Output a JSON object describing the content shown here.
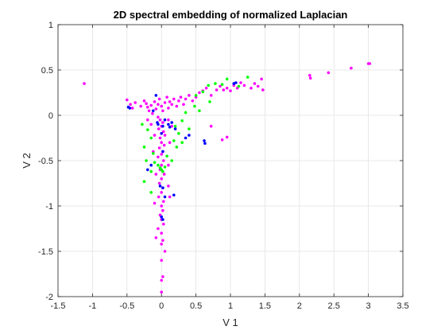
{
  "chart_data": {
    "type": "scatter",
    "title": "2D spectral embedding of normalized Laplacian",
    "xlabel": "V 1",
    "ylabel": "V 2",
    "xlim": [
      -1.5,
      3.5
    ],
    "ylim": [
      -2,
      1
    ],
    "xticks": [
      "-1.5",
      "-1",
      "-0.5",
      "0",
      "0.5",
      "1",
      "1.5",
      "2",
      "2.5",
      "3",
      "3.5"
    ],
    "yticks": [
      "-2",
      "-1.5",
      "-1",
      "-0.5",
      "0",
      "0.5",
      "1"
    ],
    "grid": true,
    "box": true,
    "series": [
      {
        "color": "#ff00ff",
        "points": [
          [
            -1.12,
            0.35
          ],
          [
            -0.5,
            0.17
          ],
          [
            -0.45,
            0.12
          ],
          [
            -0.42,
            0.08
          ],
          [
            -0.38,
            0.14
          ],
          [
            -0.3,
            0.1
          ],
          [
            -0.25,
            0.16
          ],
          [
            -0.22,
            0.13
          ],
          [
            -0.2,
            0.09
          ],
          [
            -0.18,
            0.05
          ],
          [
            -0.15,
            0.11
          ],
          [
            -0.13,
            0.02
          ],
          [
            -0.1,
            0.15
          ],
          [
            -0.08,
            0.07
          ],
          [
            -0.05,
            0.12
          ],
          [
            -0.03,
            0.18
          ],
          [
            0.0,
            0.1
          ],
          [
            0.02,
            0.05
          ],
          [
            0.05,
            0.14
          ],
          [
            0.08,
            0.2
          ],
          [
            0.1,
            0.08
          ],
          [
            0.12,
            0.15
          ],
          [
            0.15,
            0.12
          ],
          [
            0.18,
            0.18
          ],
          [
            0.22,
            0.1
          ],
          [
            0.25,
            0.16
          ],
          [
            0.28,
            0.2
          ],
          [
            0.32,
            0.12
          ],
          [
            0.35,
            0.18
          ],
          [
            0.4,
            0.22
          ],
          [
            0.45,
            0.16
          ],
          [
            0.5,
            0.2
          ],
          [
            0.55,
            0.25
          ],
          [
            0.6,
            0.27
          ],
          [
            0.65,
            0.3
          ],
          [
            0.72,
            0.22
          ],
          [
            0.8,
            0.28
          ],
          [
            0.85,
            0.32
          ],
          [
            0.9,
            0.28
          ],
          [
            0.95,
            0.3
          ],
          [
            1.0,
            0.27
          ],
          [
            1.05,
            0.33
          ],
          [
            1.1,
            0.3
          ],
          [
            1.15,
            0.36
          ],
          [
            1.2,
            0.33
          ],
          [
            1.3,
            0.3
          ],
          [
            1.35,
            0.35
          ],
          [
            1.4,
            0.32
          ],
          [
            1.45,
            0.4
          ],
          [
            1.47,
            0.28
          ],
          [
            2.15,
            0.44
          ],
          [
            2.16,
            0.41
          ],
          [
            2.42,
            0.47
          ],
          [
            2.75,
            0.52
          ],
          [
            3.0,
            0.57
          ],
          [
            3.02,
            0.57
          ],
          [
            0.72,
            -0.12
          ],
          [
            0.88,
            -0.27
          ],
          [
            0.95,
            -0.24
          ],
          [
            -0.05,
            -0.02
          ],
          [
            -0.02,
            -0.05
          ],
          [
            0.02,
            -0.08
          ],
          [
            0.0,
            -0.12
          ],
          [
            -0.04,
            -0.15
          ],
          [
            0.03,
            -0.18
          ],
          [
            0.05,
            -0.22
          ],
          [
            -0.02,
            -0.25
          ],
          [
            0.0,
            -0.3
          ],
          [
            0.04,
            -0.33
          ],
          [
            -0.03,
            -0.36
          ],
          [
            0.02,
            -0.4
          ],
          [
            0.0,
            -0.43
          ],
          [
            -0.05,
            -0.46
          ],
          [
            0.03,
            -0.5
          ],
          [
            0.0,
            -0.55
          ],
          [
            -0.02,
            -0.6
          ],
          [
            0.04,
            -0.65
          ],
          [
            0.0,
            -0.7
          ],
          [
            -0.03,
            -0.75
          ],
          [
            0.02,
            -0.8
          ],
          [
            0.0,
            -0.85
          ],
          [
            -0.04,
            -0.9
          ],
          [
            0.03,
            -0.95
          ],
          [
            -0.1,
            -0.97
          ],
          [
            0.0,
            -1.0
          ],
          [
            0.02,
            -1.05
          ],
          [
            -0.02,
            -1.1
          ],
          [
            0.0,
            -1.15
          ],
          [
            0.03,
            -1.2
          ],
          [
            -0.05,
            -1.25
          ],
          [
            0.0,
            -1.3
          ],
          [
            -0.08,
            -1.35
          ],
          [
            0.02,
            -1.38
          ],
          [
            0.0,
            -1.42
          ],
          [
            0.05,
            -1.5
          ],
          [
            0.0,
            -1.6
          ],
          [
            0.02,
            -1.78
          ],
          [
            0.0,
            -1.82
          ],
          [
            0.0,
            -1.95
          ],
          [
            -0.2,
            -0.05
          ],
          [
            -0.15,
            -0.1
          ],
          [
            0.1,
            -0.05
          ],
          [
            0.15,
            -0.12
          ],
          [
            -0.1,
            -0.22
          ],
          [
            0.12,
            -0.3
          ],
          [
            -0.12,
            -0.4
          ],
          [
            0.1,
            -0.55
          ],
          [
            -0.08,
            -0.65
          ],
          [
            0.1,
            -0.78
          ],
          [
            0.12,
            -0.9
          ]
        ]
      },
      {
        "color": "#00ff00",
        "points": [
          [
            -0.28,
            -0.1
          ],
          [
            -0.2,
            -0.16
          ],
          [
            -0.15,
            -0.25
          ],
          [
            -0.25,
            -0.35
          ],
          [
            -0.12,
            -0.42
          ],
          [
            -0.22,
            -0.5
          ],
          [
            -0.15,
            -0.62
          ],
          [
            -0.25,
            -0.73
          ],
          [
            -0.15,
            -0.85
          ],
          [
            0.2,
            -0.12
          ],
          [
            0.25,
            -0.2
          ],
          [
            0.3,
            -0.06
          ],
          [
            0.35,
            0.03
          ],
          [
            0.4,
            -0.15
          ],
          [
            0.48,
            0.1
          ],
          [
            0.5,
            0.22
          ],
          [
            0.6,
            0.26
          ],
          [
            0.68,
            0.33
          ],
          [
            0.78,
            0.35
          ],
          [
            0.88,
            0.34
          ],
          [
            0.95,
            0.4
          ],
          [
            1.05,
            0.35
          ],
          [
            1.12,
            0.32
          ],
          [
            1.25,
            0.42
          ],
          [
            0.55,
            0.05
          ],
          [
            0.7,
            0.15
          ],
          [
            -0.02,
            -0.58
          ],
          [
            0.0,
            -0.6
          ],
          [
            0.02,
            -0.62
          ],
          [
            0.05,
            -0.57
          ],
          [
            -0.05,
            -0.55
          ],
          [
            0.08,
            -0.45
          ],
          [
            0.15,
            -0.5
          ],
          [
            -0.1,
            -0.52
          ],
          [
            0.18,
            -0.28
          ],
          [
            0.22,
            -0.35
          ],
          [
            0.3,
            -0.3
          ]
        ]
      },
      {
        "color": "#0000ff",
        "points": [
          [
            -0.48,
            0.09
          ],
          [
            -0.46,
            0.08
          ],
          [
            -0.12,
            0.05
          ],
          [
            -0.08,
            0.22
          ],
          [
            -0.06,
            -0.08
          ],
          [
            -0.05,
            -0.1
          ],
          [
            0.02,
            -0.12
          ],
          [
            0.05,
            -0.05
          ],
          [
            0.1,
            -0.1
          ],
          [
            0.12,
            -0.13
          ],
          [
            0.15,
            -0.08
          ],
          [
            0.2,
            -0.15
          ],
          [
            0.35,
            -0.25
          ],
          [
            0.4,
            -0.22
          ],
          [
            0.62,
            -0.28
          ],
          [
            0.63,
            -0.31
          ],
          [
            1.05,
            0.35
          ],
          [
            1.08,
            0.36
          ],
          [
            -0.2,
            -0.6
          ],
          [
            -0.15,
            -0.55
          ],
          [
            0.02,
            -0.4
          ],
          [
            0.0,
            -0.2
          ],
          [
            -0.02,
            -0.78
          ],
          [
            0.02,
            -0.8
          ],
          [
            0.05,
            -0.9
          ],
          [
            0.18,
            -0.88
          ],
          [
            0.0,
            -1.12
          ],
          [
            0.02,
            -1.15
          ]
        ]
      }
    ]
  }
}
